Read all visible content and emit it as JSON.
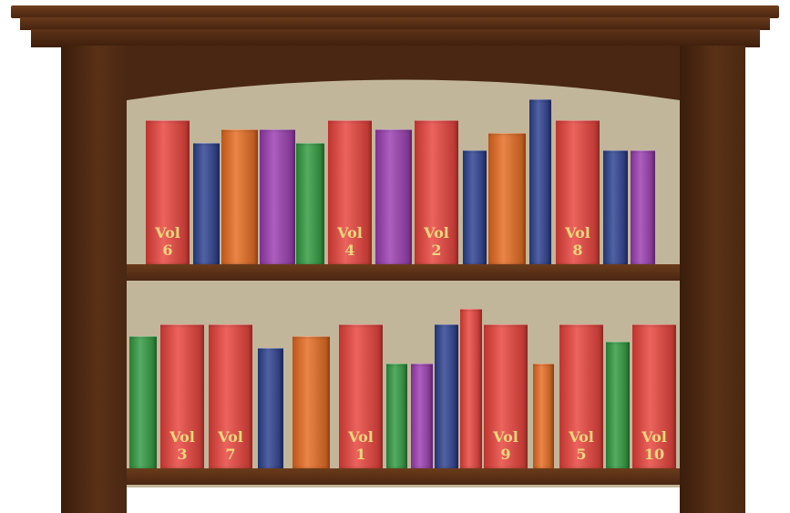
{
  "colors": {
    "red": "#e8413a",
    "blue": "#2b3f8f",
    "orange": "#e56a1f",
    "purple": "#9a3cb0",
    "green": "#2f9a3e",
    "label": "#f0d67a"
  },
  "shelf_top": {
    "books": [
      {
        "color": "red",
        "label": "Vol\n6"
      },
      {
        "color": "blue",
        "label": ""
      },
      {
        "color": "orange",
        "label": ""
      },
      {
        "color": "purple",
        "label": ""
      },
      {
        "color": "green",
        "label": ""
      },
      {
        "color": "red",
        "label": "Vol\n4"
      },
      {
        "color": "purple",
        "label": ""
      },
      {
        "color": "red",
        "label": "Vol\n2"
      },
      {
        "color": "blue",
        "label": ""
      },
      {
        "color": "orange",
        "label": ""
      },
      {
        "color": "blue",
        "label": ""
      },
      {
        "color": "red",
        "label": "Vol\n8"
      },
      {
        "color": "blue",
        "label": ""
      },
      {
        "color": "purple",
        "label": ""
      }
    ]
  },
  "shelf_bottom": {
    "books": [
      {
        "color": "green",
        "label": ""
      },
      {
        "color": "red",
        "label": "Vol\n3"
      },
      {
        "color": "red",
        "label": "Vol\n7"
      },
      {
        "color": "blue",
        "label": ""
      },
      {
        "color": "orange",
        "label": ""
      },
      {
        "color": "red",
        "label": "Vol\n1"
      },
      {
        "color": "green",
        "label": ""
      },
      {
        "color": "purple",
        "label": ""
      },
      {
        "color": "blue",
        "label": ""
      },
      {
        "color": "red",
        "label": ""
      },
      {
        "color": "red",
        "label": "Vol\n9"
      },
      {
        "color": "orange",
        "label": ""
      },
      {
        "color": "red",
        "label": "Vol\n5"
      },
      {
        "color": "green",
        "label": ""
      },
      {
        "color": "red",
        "label": "Vol\n10"
      }
    ]
  }
}
